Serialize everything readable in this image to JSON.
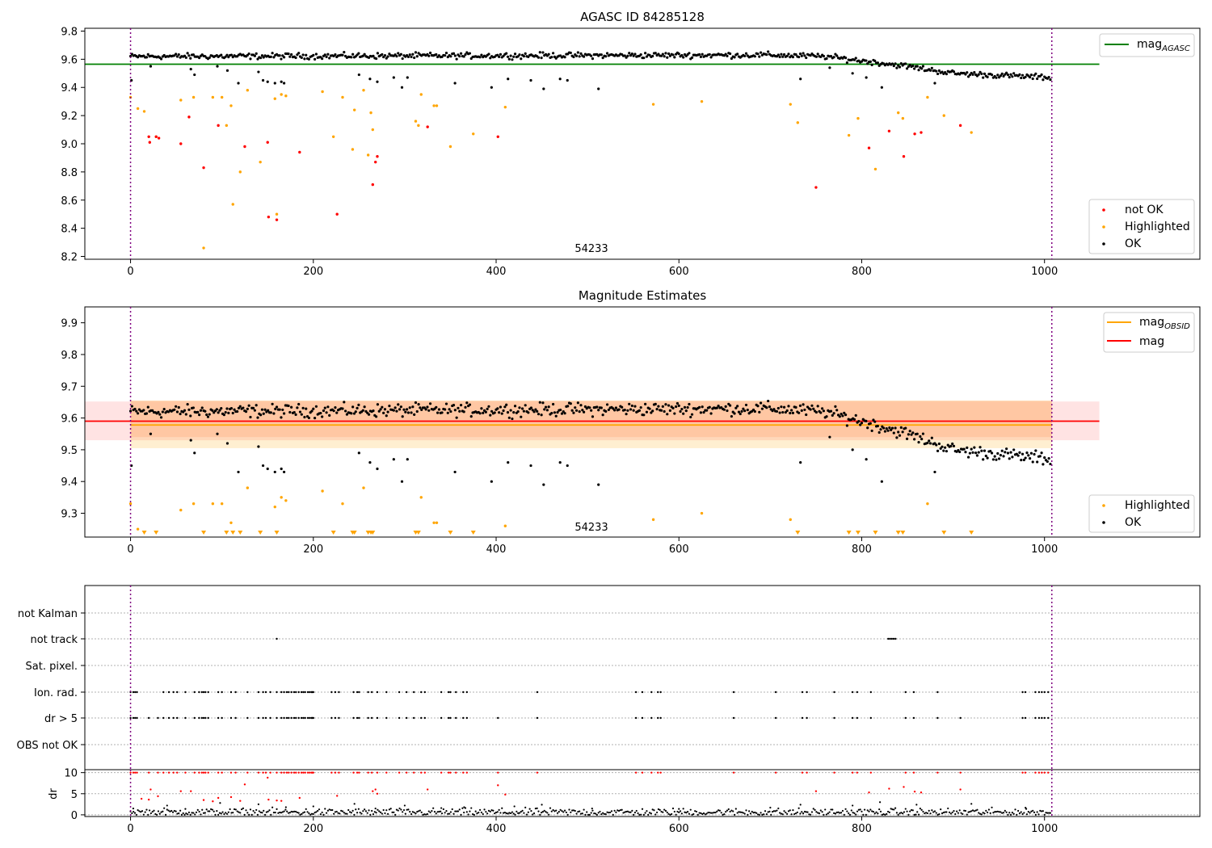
{
  "chart_data": [
    {
      "type": "scatter",
      "title": "AGASC ID 84285128",
      "annotation": "54233",
      "xlim": [
        -50,
        1170
      ],
      "ylim": [
        8.18,
        9.82
      ],
      "xticks": [
        0,
        200,
        400,
        600,
        800,
        1000
      ],
      "yticks": [
        8.2,
        8.4,
        8.6,
        8.8,
        9.0,
        9.2,
        9.4,
        9.6,
        9.8
      ],
      "vlines": [
        0,
        1008
      ],
      "hline": {
        "name": "mag",
        "name_sub": "AGASC",
        "y": 9.565,
        "x_range": [
          -50,
          1060
        ],
        "color": "#008000"
      },
      "series": [
        {
          "name": "not OK",
          "color": "#ff0000"
        },
        {
          "name": "Highlighted",
          "color": "#ffa500"
        },
        {
          "name": "OK",
          "color": "#000000"
        }
      ],
      "points": {
        "ok_trend": [
          [
            0,
            9.62
          ],
          [
            700,
            9.63
          ],
          [
            760,
            9.62
          ],
          [
            800,
            9.59
          ],
          [
            850,
            9.55
          ],
          [
            900,
            9.5
          ],
          [
            1008,
            9.47
          ]
        ],
        "ok_dips": [
          [
            1,
            9.45
          ],
          [
            22,
            9.55
          ],
          [
            66,
            9.53
          ],
          [
            70,
            9.49
          ],
          [
            95,
            9.55
          ],
          [
            106,
            9.52
          ],
          [
            118,
            9.43
          ],
          [
            140,
            9.51
          ],
          [
            145,
            9.45
          ],
          [
            150,
            9.44
          ],
          [
            158,
            9.43
          ],
          [
            165,
            9.44
          ],
          [
            168,
            9.43
          ],
          [
            250,
            9.49
          ],
          [
            262,
            9.46
          ],
          [
            270,
            9.44
          ],
          [
            288,
            9.47
          ],
          [
            297,
            9.4
          ],
          [
            303,
            9.47
          ],
          [
            355,
            9.43
          ],
          [
            395,
            9.4
          ],
          [
            413,
            9.46
          ],
          [
            438,
            9.45
          ],
          [
            452,
            9.39
          ],
          [
            470,
            9.46
          ],
          [
            478,
            9.45
          ],
          [
            512,
            9.39
          ],
          [
            733,
            9.46
          ],
          [
            765,
            9.54
          ],
          [
            790,
            9.5
          ],
          [
            805,
            9.47
          ],
          [
            822,
            9.4
          ],
          [
            880,
            9.43
          ]
        ],
        "highlighted": [
          [
            0,
            9.33
          ],
          [
            8,
            9.25
          ],
          [
            15,
            9.23
          ],
          [
            28,
            9.05
          ],
          [
            55,
            9.31
          ],
          [
            69,
            9.33
          ],
          [
            80,
            8.26
          ],
          [
            90,
            9.33
          ],
          [
            100,
            9.33
          ],
          [
            105,
            9.13
          ],
          [
            110,
            9.27
          ],
          [
            112,
            8.57
          ],
          [
            120,
            8.8
          ],
          [
            128,
            9.38
          ],
          [
            142,
            8.87
          ],
          [
            158,
            9.32
          ],
          [
            160,
            8.5
          ],
          [
            165,
            9.35
          ],
          [
            170,
            9.34
          ],
          [
            210,
            9.37
          ],
          [
            222,
            9.05
          ],
          [
            232,
            9.33
          ],
          [
            243,
            8.96
          ],
          [
            245,
            9.24
          ],
          [
            255,
            9.38
          ],
          [
            260,
            8.92
          ],
          [
            263,
            9.22
          ],
          [
            265,
            9.1
          ],
          [
            312,
            9.16
          ],
          [
            315,
            9.13
          ],
          [
            318,
            9.35
          ],
          [
            332,
            9.27
          ],
          [
            335,
            9.27
          ],
          [
            350,
            8.98
          ],
          [
            375,
            9.07
          ],
          [
            410,
            9.26
          ],
          [
            572,
            9.28
          ],
          [
            625,
            9.3
          ],
          [
            722,
            9.28
          ],
          [
            730,
            9.15
          ],
          [
            786,
            9.06
          ],
          [
            796,
            9.18
          ],
          [
            815,
            8.82
          ],
          [
            840,
            9.22
          ],
          [
            845,
            9.18
          ],
          [
            872,
            9.33
          ],
          [
            890,
            9.2
          ],
          [
            920,
            9.08
          ]
        ],
        "not_ok": [
          [
            20,
            9.05
          ],
          [
            21,
            9.01
          ],
          [
            28,
            9.05
          ],
          [
            31,
            9.04
          ],
          [
            55,
            9.0
          ],
          [
            64,
            9.19
          ],
          [
            80,
            8.83
          ],
          [
            96,
            9.13
          ],
          [
            125,
            8.98
          ],
          [
            150,
            9.01
          ],
          [
            151,
            8.48
          ],
          [
            160,
            8.46
          ],
          [
            185,
            8.94
          ],
          [
            226,
            8.5
          ],
          [
            265,
            8.71
          ],
          [
            268,
            8.87
          ],
          [
            270,
            8.91
          ],
          [
            325,
            9.12
          ],
          [
            402,
            9.05
          ],
          [
            750,
            8.69
          ],
          [
            808,
            8.97
          ],
          [
            830,
            9.09
          ],
          [
            846,
            8.91
          ],
          [
            858,
            9.07
          ],
          [
            865,
            9.08
          ],
          [
            908,
            9.13
          ]
        ]
      },
      "legend_location": "lower right"
    },
    {
      "type": "scatter",
      "title": "Magnitude Estimates",
      "annotation": "54233",
      "xlim": [
        -50,
        1170
      ],
      "ylim": [
        9.225,
        9.95
      ],
      "xticks": [
        0,
        200,
        400,
        600,
        800,
        1000
      ],
      "yticks": [
        9.3,
        9.4,
        9.5,
        9.6,
        9.7,
        9.8,
        9.9
      ],
      "vlines": [
        0,
        1008
      ],
      "hlines": [
        {
          "name": "mag",
          "name_sub": "OBSID",
          "y": 9.578,
          "x_range": [
            0,
            1008
          ],
          "color": "#ffa500",
          "band": [
            9.505,
            9.655
          ],
          "band_color": "#ffa500"
        },
        {
          "name": "mag",
          "y": 9.59,
          "x_range": [
            -50,
            1060
          ],
          "color": "#ff0000",
          "band": [
            9.53,
            9.652
          ],
          "band_color": "#ff7f7f"
        }
      ],
      "series": [
        {
          "name": "Highlighted",
          "color": "#ffa500"
        },
        {
          "name": "OK",
          "color": "#000000"
        }
      ],
      "legend_location_top": "upper right",
      "legend_location_bottom": "lower right"
    },
    {
      "type": "scatter",
      "ytick_labels": [
        "not Kalman",
        "not track",
        "Sat. pixel.",
        "Ion. rad.",
        "dr > 5",
        "OBS not OK"
      ],
      "xlim": [
        -50,
        1170
      ],
      "xticks": [
        0,
        200,
        400,
        600,
        800,
        1000
      ],
      "vlines": [
        0,
        1008
      ],
      "flags": {
        "not track": [
          160,
          829,
          831,
          833,
          835,
          837
        ],
        "ion_rad": [
          0,
          3,
          5,
          7,
          36,
          42,
          47,
          51,
          60,
          70,
          75,
          78,
          80,
          82,
          85,
          96,
          100,
          110,
          115,
          128,
          140,
          145,
          148,
          153,
          160,
          165,
          168,
          171,
          173,
          176,
          179,
          181,
          184,
          187,
          189,
          191,
          194,
          196,
          198,
          199,
          200,
          220,
          224,
          228,
          244,
          248,
          250,
          260,
          264,
          270,
          280,
          294,
          302,
          310,
          318,
          322,
          340,
          348,
          350,
          356,
          364,
          368,
          445,
          553,
          560,
          570,
          577,
          580,
          660,
          706,
          735,
          740,
          770,
          790,
          795,
          810,
          848,
          857,
          883,
          976,
          979,
          990,
          994,
          997,
          1000,
          1004
        ],
        "dr_gt_5": [
          0,
          3,
          5,
          7,
          20,
          30,
          36,
          42,
          47,
          51,
          60,
          70,
          75,
          78,
          80,
          82,
          85,
          96,
          100,
          110,
          115,
          128,
          140,
          145,
          148,
          153,
          160,
          165,
          168,
          171,
          173,
          176,
          179,
          181,
          184,
          187,
          189,
          191,
          194,
          196,
          198,
          199,
          200,
          220,
          224,
          228,
          244,
          248,
          250,
          260,
          264,
          270,
          280,
          294,
          302,
          310,
          318,
          322,
          340,
          348,
          350,
          356,
          364,
          368,
          402,
          445,
          553,
          560,
          570,
          577,
          580,
          660,
          706,
          735,
          740,
          770,
          790,
          795,
          810,
          848,
          857,
          883,
          908,
          976,
          979,
          990,
          994,
          997,
          1000,
          1004
        ]
      }
    },
    {
      "type": "scatter",
      "ylabel": "dr",
      "ylim": [
        -0.4,
        10.7
      ],
      "yticks": [
        0,
        5,
        10
      ],
      "xlim": [
        -50,
        1170
      ],
      "xticks": [
        0,
        200,
        400,
        600,
        800,
        1000
      ],
      "vlines": [
        0,
        1008
      ],
      "series": [
        {
          "name": "dr > 5",
          "color": "#ff0000"
        },
        {
          "name": "dr",
          "color": "#000000"
        }
      ],
      "red_mid": [
        [
          12,
          3.8
        ],
        [
          20,
          3.6
        ],
        [
          22,
          6
        ],
        [
          30,
          4.4
        ],
        [
          55,
          5.6
        ],
        [
          66,
          5.6
        ],
        [
          80,
          3.5
        ],
        [
          90,
          3.2
        ],
        [
          96,
          4
        ],
        [
          110,
          4.2
        ],
        [
          120,
          3.3
        ],
        [
          125,
          7.2
        ],
        [
          150,
          8.8
        ],
        [
          151,
          3.6
        ],
        [
          160,
          3.4
        ],
        [
          165,
          3.3
        ],
        [
          185,
          4
        ],
        [
          226,
          4.5
        ],
        [
          265,
          5.6
        ],
        [
          268,
          6
        ],
        [
          270,
          5
        ],
        [
          325,
          6
        ],
        [
          402,
          7
        ],
        [
          410,
          4.8
        ],
        [
          750,
          5.6
        ],
        [
          808,
          5.3
        ],
        [
          830,
          6.2
        ],
        [
          846,
          6.6
        ],
        [
          858,
          5.5
        ],
        [
          865,
          5.3
        ],
        [
          908,
          6
        ]
      ]
    }
  ]
}
